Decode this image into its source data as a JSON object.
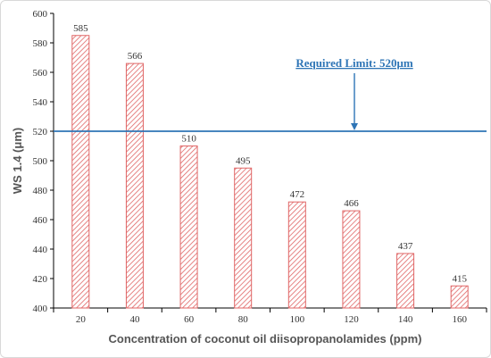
{
  "chart_data": {
    "type": "bar",
    "categories": [
      "20",
      "40",
      "60",
      "80",
      "100",
      "120",
      "140",
      "160"
    ],
    "values": [
      585,
      566,
      510,
      495,
      472,
      466,
      437,
      415
    ],
    "xlabel": "Concentration of coconut oil diisopropanolamides (ppm)",
    "ylabel": "WS 1.4 (μm)",
    "ylim": [
      400,
      600
    ],
    "yticks": [
      400,
      420,
      440,
      460,
      480,
      500,
      520,
      540,
      560,
      580,
      600
    ],
    "grid": false,
    "bar_color": "#e06666",
    "bar_pattern": "diagonal-hatch",
    "reference_line": {
      "value": 520,
      "label": "Required Limit: 520μm",
      "color": "#2e75b6"
    }
  }
}
